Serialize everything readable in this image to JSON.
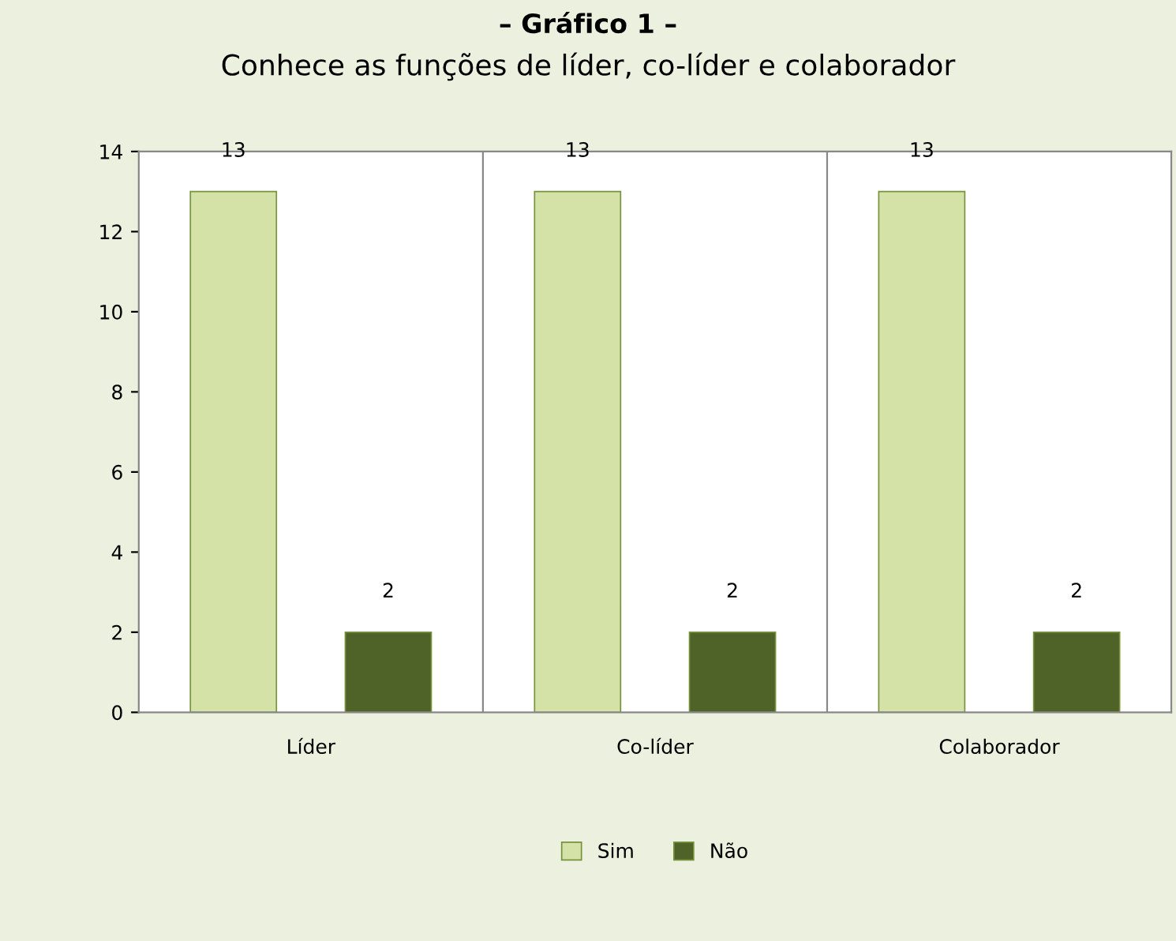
{
  "chart_data": {
    "type": "bar",
    "title": "– Gráfico 1 –",
    "subtitle": "Conhece as funções de líder, co-líder e colaborador",
    "categories": [
      "Líder",
      "Co-líder",
      "Colaborador"
    ],
    "series": [
      {
        "name": "Sim",
        "color": "#d4e2a8",
        "values": [
          13,
          13,
          13
        ]
      },
      {
        "name": "Não",
        "color": "#4f6228",
        "values": [
          2,
          2,
          2
        ]
      }
    ],
    "ylim": [
      0,
      14
    ],
    "yticks": [
      0,
      2,
      4,
      6,
      8,
      10,
      12,
      14
    ],
    "grid": "x",
    "legend": "bottom",
    "data_labels": true
  }
}
